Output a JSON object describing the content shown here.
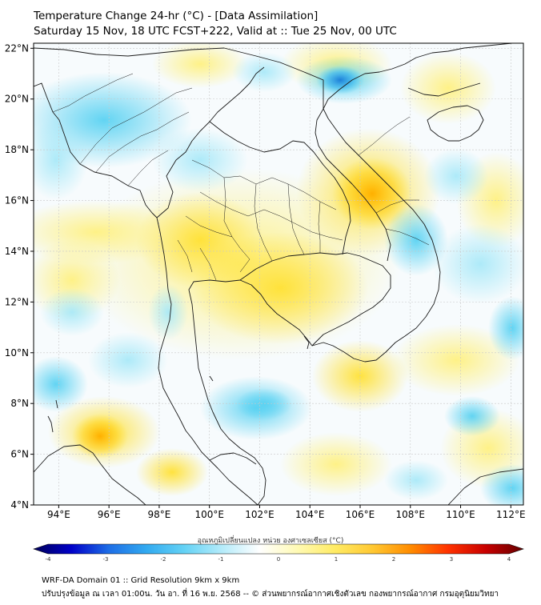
{
  "title_line1": "Temperature Change 24-hr (°C) - [Data Assimilation]",
  "title_line2": "Saturday 15 Nov, 18 UTC FCST+222, Valid at :: Tue 25 Nov, 00 UTC",
  "lat_labels": [
    "22°N",
    "20°N",
    "18°N",
    "16°N",
    "14°N",
    "12°N",
    "10°N",
    "8°N",
    "6°N",
    "4°N"
  ],
  "lon_labels": [
    "94°E",
    "96°E",
    "98°E",
    "100°E",
    "102°E",
    "104°E",
    "106°E",
    "108°E",
    "110°E",
    "112°E"
  ],
  "colorbar_title": "อุณหภูมิเปลี่ยนแปลง หน่วย องศาเซลเซียส (°C)",
  "colorbar_ticks": [
    "-4",
    "-3",
    "-2",
    "-1",
    "0",
    "1",
    "2",
    "3",
    "4"
  ],
  "colorbar_stops": [
    "#00005a",
    "#0000c8",
    "#1e6ee6",
    "#32aaf0",
    "#64d2f5",
    "#b4ebfa",
    "#ffffff",
    "#fffab4",
    "#ffeb64",
    "#ffc832",
    "#ff8c00",
    "#ff3200",
    "#c80000",
    "#640000"
  ],
  "footer_line1": "WRF-DA Domain 01 :: Grid Resolution 9km x 9km",
  "footer_line2": "ปรับปรุงข้อมูล ณ เวลา 01:00น. วัน อา. ที่ 16 พ.ย. 2568 -- © ส่วนพยากรณ์อากาศเชิงตัวเลข กองพยากรณ์อากาศ กรมอุตุนิยมวิทยา",
  "colors": {
    "warm": "#ffe135",
    "warm_peak": "#ffb400",
    "cool": "#5ad2f2",
    "cool_peak": "#2288e0",
    "coast": "#1a1a1a",
    "grid": "#c8c8c8"
  }
}
